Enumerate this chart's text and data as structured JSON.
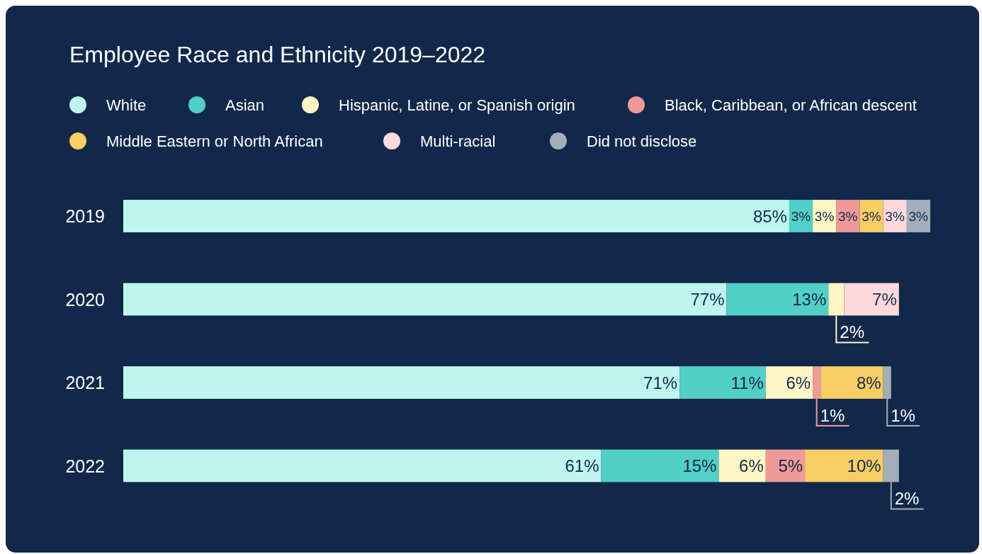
{
  "chart_data": {
    "type": "bar",
    "orientation": "horizontal",
    "stacked": true,
    "title": "Employee Race and Ethnicity 2019–2022",
    "categories": [
      "2019",
      "2020",
      "2021",
      "2022"
    ],
    "legend": "top",
    "series": [
      {
        "name": "White",
        "color": "#bff5ef",
        "values": [
          85,
          77,
          71,
          61
        ],
        "value_labels": [
          "85%",
          "77%",
          "71%",
          "61%"
        ]
      },
      {
        "name": "Asian",
        "color": "#52cfc6",
        "values": [
          3,
          13,
          11,
          15
        ],
        "value_labels": [
          "3%",
          "13%",
          "11%",
          "15%"
        ]
      },
      {
        "name": "Hispanic, Latine, or Spanish origin",
        "color": "#fff6c5",
        "values": [
          3,
          2,
          6,
          6
        ],
        "value_labels": [
          "3%",
          "2%",
          "6%",
          "6%"
        ]
      },
      {
        "name": "Black, Caribbean, or African descent",
        "color": "#ef9a98",
        "values": [
          3,
          null,
          1,
          5
        ],
        "value_labels": [
          "3%",
          null,
          "1%",
          "5%"
        ]
      },
      {
        "name": "Middle Eastern or North African",
        "color": "#f7cd64",
        "values": [
          3,
          null,
          8,
          10
        ],
        "value_labels": [
          "3%",
          null,
          "8%",
          "10%"
        ]
      },
      {
        "name": "Multi-racial",
        "color": "#ffd9dc",
        "values": [
          3,
          7,
          null,
          null
        ],
        "value_labels": [
          "3%",
          "7%",
          null,
          null
        ]
      },
      {
        "name": "Did not disclose",
        "color": "#a5aeb8",
        "values": [
          3,
          null,
          1,
          2
        ],
        "value_labels": [
          "3%",
          null,
          "1%",
          "2%"
        ]
      }
    ]
  }
}
